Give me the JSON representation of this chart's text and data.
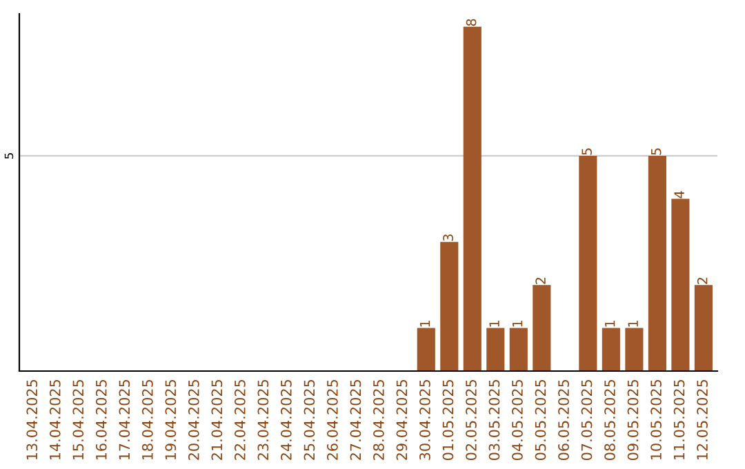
{
  "chart_data": {
    "type": "bar",
    "categories": [
      "13.04.2025",
      "14.04.2025",
      "15.04.2025",
      "16.04.2025",
      "17.04.2025",
      "18.04.2025",
      "19.04.2025",
      "20.04.2025",
      "21.04.2025",
      "22.04.2025",
      "23.04.2025",
      "24.04.2025",
      "25.04.2025",
      "26.04.2025",
      "27.04.2025",
      "28.04.2025",
      "29.04.2025",
      "30.04.2025",
      "01.05.2025",
      "02.05.2025",
      "03.05.2025",
      "04.05.2025",
      "05.05.2025",
      "06.05.2025",
      "07.05.2025",
      "08.05.2025",
      "09.05.2025",
      "10.05.2025",
      "11.05.2025",
      "12.05.2025"
    ],
    "values": [
      null,
      null,
      null,
      null,
      null,
      null,
      null,
      null,
      null,
      null,
      null,
      null,
      null,
      null,
      null,
      null,
      null,
      1,
      3,
      8,
      1,
      1,
      2,
      null,
      5,
      1,
      1,
      5,
      4,
      2
    ],
    "value_labels": [
      null,
      null,
      null,
      null,
      null,
      null,
      null,
      null,
      null,
      null,
      null,
      null,
      null,
      null,
      null,
      null,
      null,
      "1",
      "3",
      "8",
      "1",
      "1",
      "2",
      null,
      "5",
      "1",
      "1",
      "5",
      "4",
      "2"
    ],
    "ylim": [
      0,
      8.3
    ],
    "color": "#a0582b",
    "yticks": [
      5
    ],
    "grid": "y"
  }
}
